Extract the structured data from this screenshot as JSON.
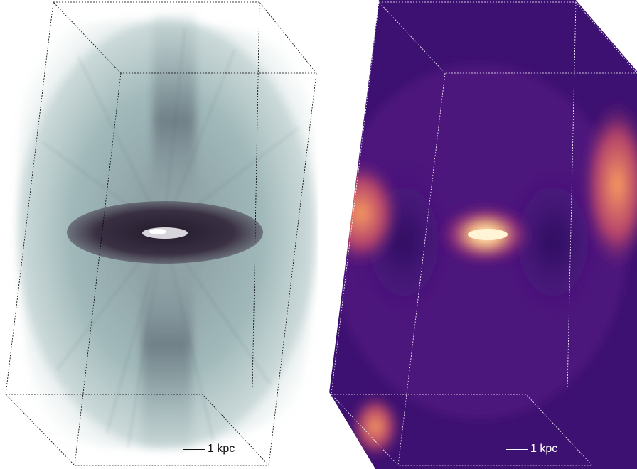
{
  "panels": [
    {
      "id": "left",
      "scale_bar_label": "1 kpc",
      "colors": {
        "background": "#ffffff",
        "gas": "#a9c2c1",
        "disk": "#2e2535",
        "box_lines": "#000000",
        "label": "#111111"
      }
    },
    {
      "id": "right",
      "scale_bar_label": "1 kpc",
      "colors": {
        "background": "#3b0f6f",
        "hot_gas": "#f89b5a",
        "core": "#fff4d6",
        "box_lines": "#ffffff",
        "label": "#ffffff"
      }
    }
  ]
}
